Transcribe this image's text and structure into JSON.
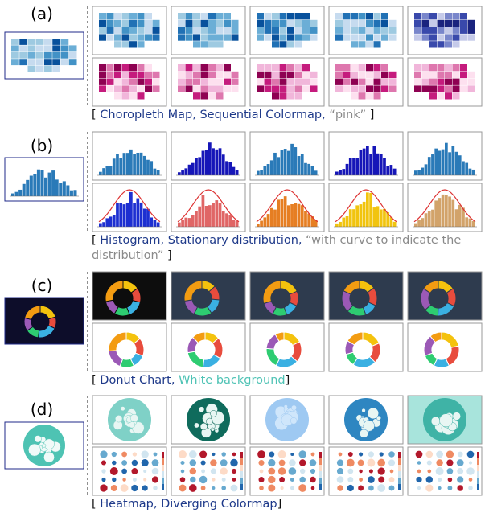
{
  "rows": [
    {
      "label": "(a)",
      "caption": [
        "[",
        "Choropleth Map, Sequential Colormap,",
        "“pink”",
        "]"
      ]
    },
    {
      "label": "(b)",
      "caption": [
        "[",
        "Histogram, Stationary distribution,",
        "“with curve to indicate the distribution”",
        "]"
      ]
    },
    {
      "label": "(c)",
      "caption": [
        "[",
        "Donut Chart,",
        "White background",
        "]"
      ]
    },
    {
      "label": "(d)",
      "caption": [
        "[",
        "Heatmap, Diverging Colormap",
        "]"
      ]
    }
  ]
}
